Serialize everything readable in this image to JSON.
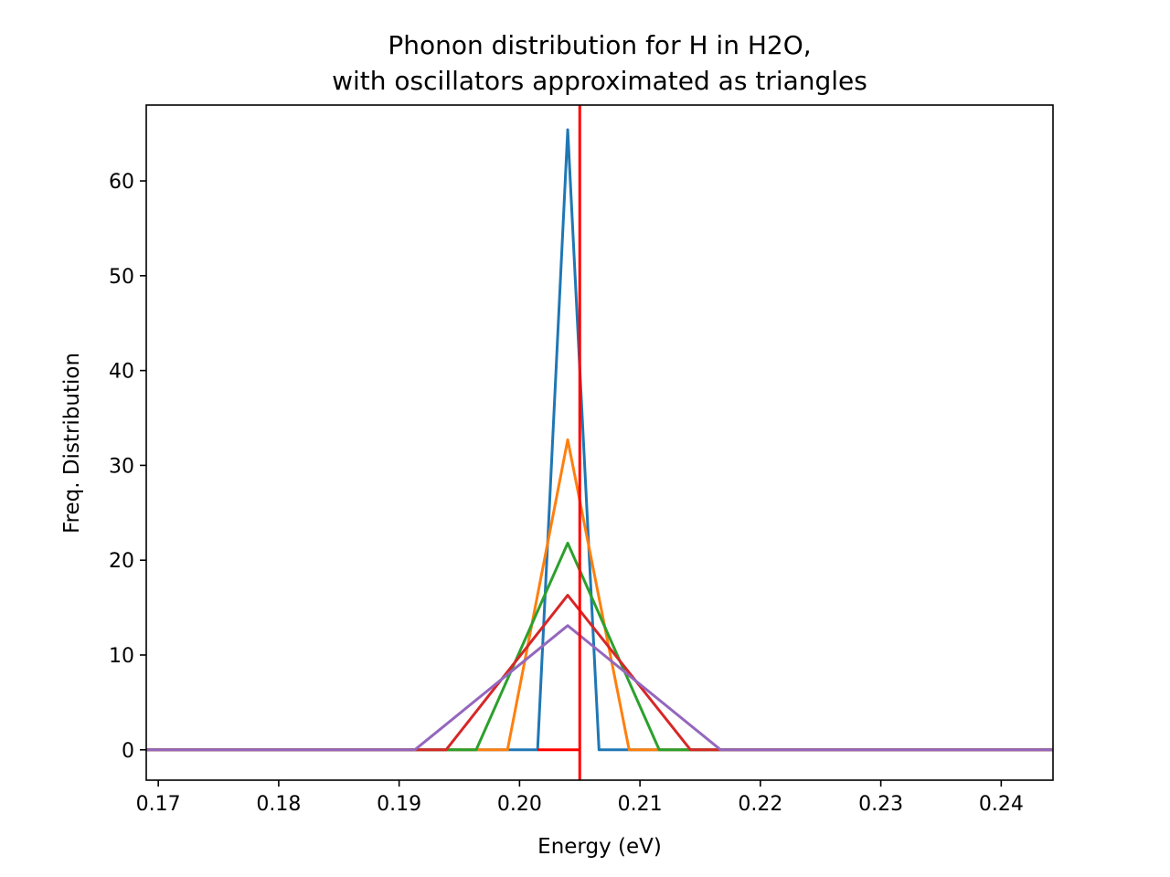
{
  "chart_data": {
    "type": "line",
    "title_lines": [
      "Phonon distribution for H in H2O,",
      "with oscillators approximated as triangles"
    ],
    "xlabel": "Energy (eV)",
    "ylabel": "Freq. Distribution",
    "xlim": [
      0.169,
      0.2443
    ],
    "ylim": [
      -3.2,
      68.0
    ],
    "xticks": [
      0.17,
      0.18,
      0.19,
      0.2,
      0.21,
      0.22,
      0.23,
      0.24
    ],
    "xtick_labels": [
      "0.17",
      "0.18",
      "0.19",
      "0.20",
      "0.21",
      "0.22",
      "0.23",
      "0.24"
    ],
    "yticks": [
      0,
      10,
      20,
      30,
      40,
      50,
      60
    ],
    "ytick_labels": [
      "0",
      "10",
      "20",
      "30",
      "40",
      "50",
      "60"
    ],
    "grid": false,
    "legend": false,
    "series": [
      {
        "color": "#1f77b4",
        "x": [
          0.169,
          0.2015,
          0.204,
          0.2066,
          0.2443
        ],
        "y": [
          0,
          0,
          65.4,
          0,
          0
        ]
      },
      {
        "color": "#ff7f0e",
        "x": [
          0.169,
          0.199,
          0.204,
          0.2091,
          0.2443
        ],
        "y": [
          0,
          0,
          32.7,
          0,
          0
        ]
      },
      {
        "color": "#2ca02c",
        "x": [
          0.169,
          0.1964,
          0.204,
          0.2116,
          0.2443
        ],
        "y": [
          0,
          0,
          21.8,
          0,
          0
        ]
      },
      {
        "color": "#d62728",
        "x": [
          0.169,
          0.1939,
          0.204,
          0.2142,
          0.2443
        ],
        "y": [
          0,
          0,
          16.3,
          0,
          0
        ]
      },
      {
        "color": "#9467bd",
        "x": [
          0.169,
          0.1913,
          0.204,
          0.2167,
          0.2443
        ],
        "y": [
          0,
          0,
          13.1,
          0,
          0
        ]
      }
    ],
    "annotations": [
      {
        "type": "vertical-line",
        "color": "#ff0000",
        "x": 0.205
      },
      {
        "type": "horizontal-line",
        "color": "#ff0000",
        "x": [
          0.2015,
          0.205
        ],
        "y": 0
      }
    ]
  }
}
